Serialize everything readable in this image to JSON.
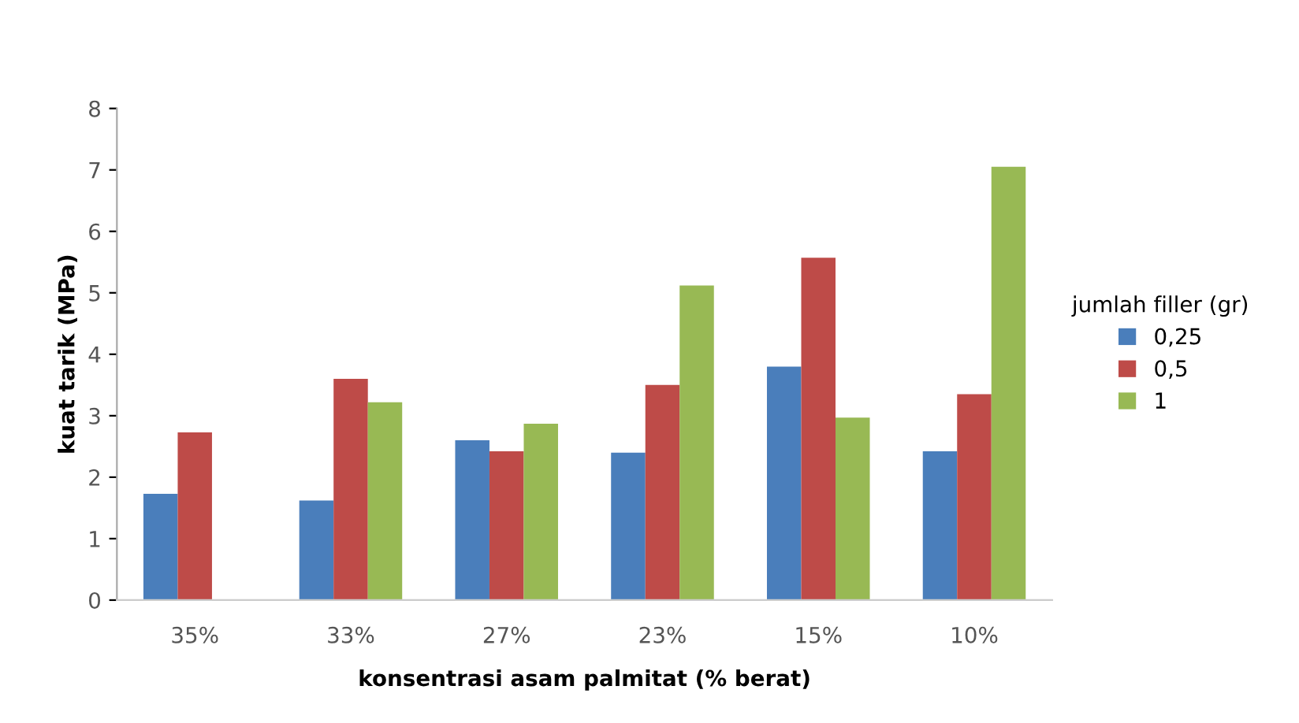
{
  "chart_data": {
    "type": "bar",
    "xlabel": "konsentrasi asam palmitat (% berat)",
    "ylabel": "kuat tarik (MPa)",
    "legend_title": "jumlah filler (gr)",
    "categories": [
      "35%",
      "33%",
      "27%",
      "23%",
      "15%",
      "10%"
    ],
    "series": [
      {
        "name": "0,25",
        "color": "#4a7ebb",
        "values": [
          1.73,
          1.62,
          2.6,
          2.4,
          3.8,
          2.42
        ]
      },
      {
        "name": "0,5",
        "color": "#be4b48",
        "values": [
          2.73,
          3.6,
          2.42,
          3.5,
          5.57,
          3.35
        ]
      },
      {
        "name": "1",
        "color": "#98b954",
        "values": [
          null,
          3.22,
          2.87,
          5.12,
          2.97,
          7.05
        ]
      }
    ],
    "ylim": [
      0,
      8
    ],
    "yticks": [
      0,
      1,
      2,
      3,
      4,
      5,
      6,
      7,
      8
    ],
    "grid": false,
    "legend": "right"
  }
}
